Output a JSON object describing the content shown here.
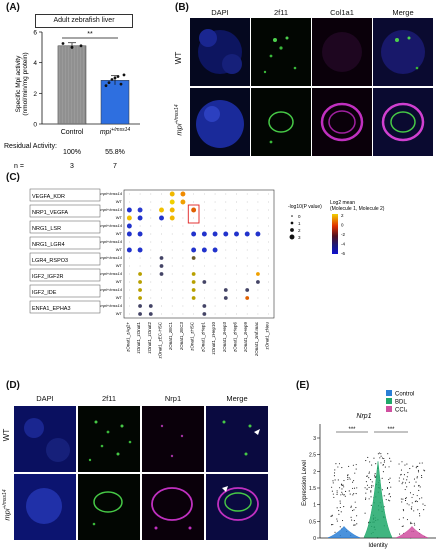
{
  "panel_labels": {
    "a": "(A)",
    "b": "(B)",
    "c": "(C)",
    "d": "(D)",
    "e": "(E)"
  },
  "panel_a": {
    "header": "Adult zebrafish liver",
    "ylabel_line1": "Specific Mpi activity",
    "ylabel_line2": "(nmol/min/mg protein)",
    "yticks": [
      "0",
      "2",
      "4",
      "6"
    ],
    "significance": "**",
    "residual_label": "Residual Activity:",
    "n_label": "n =",
    "chart_data": {
      "type": "bar",
      "categories": [
        "Control",
        "mpi+/mss14"
      ],
      "values": [
        5.1,
        2.85
      ],
      "ylim": [
        0,
        6
      ],
      "errors": [
        0.2,
        0.3
      ],
      "colors": [
        "#9a9a9a",
        "#2e6fe0"
      ],
      "residual_activity": [
        "100%",
        "55.8%"
      ],
      "n": [
        "3",
        "7"
      ]
    }
  },
  "panel_b": {
    "columns": [
      "DAPI",
      "2f11",
      "Col1a1",
      "Merge"
    ],
    "rows": [
      "WT",
      "mpi+/mss14"
    ]
  },
  "panel_c": {
    "rows": [
      "VEGFA_KDR",
      "NRP1_VEGFA",
      "NRG1_LSR",
      "NRG1_LGR4",
      "LGR4_RSPO3",
      "IGF2_IGF2R",
      "IGF2_IDE",
      "ENFA1_EPHA3"
    ],
    "sub_rows": [
      "mpi+/mss14",
      "WT"
    ],
    "columns": [
      "zOnat1_zAg2+",
      "zOnat1_zOnat1",
      "zOnat1_zOnat2",
      "zOnat1_zEC-HSC",
      "zOnat1_zEC1",
      "zOnat1_zEC3",
      "zOnat1_zHSC",
      "zOnat1_zHep1",
      "zOnat1_zHep10",
      "zOnat1_zHep3",
      "zOnat1_zHep6",
      "zOnat1_zHep9",
      "zOnat1_zmf.mac",
      "zOnat1_zNeu"
    ],
    "pvalue_title": "-log10(P value)",
    "pvalue_levels": [
      "0",
      "1",
      "2",
      "3"
    ],
    "mean_title_line1": "Log2 mean",
    "mean_title_line2": "(Molecule 1, Molecule 2)",
    "mean_ticks": [
      "2",
      "0",
      "-2",
      "-4",
      "-6"
    ],
    "chart_data": {
      "type": "dot",
      "points": [
        {
          "row": 0,
          "col": 4,
          "size": 3,
          "color": "#f0b800"
        },
        {
          "row": 0,
          "col": 5,
          "size": 3,
          "color": "#f08a00"
        },
        {
          "row": 1,
          "col": 4,
          "size": 3,
          "color": "#f0d000"
        },
        {
          "row": 1,
          "col": 5,
          "size": 3,
          "color": "#f0a000"
        },
        {
          "row": 2,
          "col": 0,
          "size": 3,
          "color": "#2233cc"
        },
        {
          "row": 2,
          "col": 1,
          "size": 3,
          "color": "#2a3ad0"
        },
        {
          "row": 2,
          "col": 3,
          "size": 3,
          "color": "#f0c000"
        },
        {
          "row": 2,
          "col": 4,
          "size": 3,
          "color": "#f0b800"
        },
        {
          "row": 2,
          "col": 6,
          "size": 3,
          "color": "#e06000"
        },
        {
          "row": 3,
          "col": 0,
          "size": 3,
          "color": "#f0c000"
        },
        {
          "row": 3,
          "col": 1,
          "size": 3,
          "color": "#2233cc"
        },
        {
          "row": 3,
          "col": 3,
          "size": 3,
          "color": "#2233cc"
        },
        {
          "row": 3,
          "col": 4,
          "size": 3,
          "color": "#f0b800"
        },
        {
          "row": 4,
          "col": 0,
          "size": 3,
          "color": "#2233cc"
        },
        {
          "row": 5,
          "col": 0,
          "size": 3,
          "color": "#2233cc"
        },
        {
          "row": 5,
          "col": 1,
          "size": 3,
          "color": "#2233cc"
        },
        {
          "row": 5,
          "col": 6,
          "size": 3,
          "color": "#2233cc"
        },
        {
          "row": 5,
          "col": 7,
          "size": 3,
          "color": "#2233cc"
        },
        {
          "row": 5,
          "col": 8,
          "size": 3,
          "color": "#2233cc"
        },
        {
          "row": 5,
          "col": 9,
          "size": 3,
          "color": "#2233cc"
        },
        {
          "row": 5,
          "col": 10,
          "size": 3,
          "color": "#2233cc"
        },
        {
          "row": 5,
          "col": 11,
          "size": 3,
          "color": "#2233cc"
        },
        {
          "row": 5,
          "col": 12,
          "size": 3,
          "color": "#2233cc"
        },
        {
          "row": 7,
          "col": 0,
          "size": 3,
          "color": "#2233cc"
        },
        {
          "row": 7,
          "col": 1,
          "size": 3,
          "color": "#2233cc"
        },
        {
          "row": 7,
          "col": 6,
          "size": 3,
          "color": "#2233cc"
        },
        {
          "row": 7,
          "col": 7,
          "size": 3,
          "color": "#2233cc"
        },
        {
          "row": 7,
          "col": 8,
          "size": 3,
          "color": "#2233cc"
        },
        {
          "row": 8,
          "col": 3,
          "size": 2,
          "color": "#444466"
        },
        {
          "row": 8,
          "col": 6,
          "size": 2,
          "color": "#6a5a2a"
        },
        {
          "row": 9,
          "col": 3,
          "size": 2,
          "color": "#444466"
        },
        {
          "row": 10,
          "col": 1,
          "size": 2,
          "color": "#b8a000"
        },
        {
          "row": 10,
          "col": 3,
          "size": 2,
          "color": "#444466"
        },
        {
          "row": 10,
          "col": 6,
          "size": 2,
          "color": "#b8a000"
        },
        {
          "row": 10,
          "col": 12,
          "size": 2,
          "color": "#f0a000"
        },
        {
          "row": 11,
          "col": 1,
          "size": 2,
          "color": "#b8a000"
        },
        {
          "row": 11,
          "col": 6,
          "size": 2,
          "color": "#b8a000"
        },
        {
          "row": 11,
          "col": 7,
          "size": 2,
          "color": "#444466"
        },
        {
          "row": 11,
          "col": 12,
          "size": 2,
          "color": "#444466"
        },
        {
          "row": 12,
          "col": 1,
          "size": 2,
          "color": "#b8a000"
        },
        {
          "row": 12,
          "col": 6,
          "size": 2,
          "color": "#b8a000"
        },
        {
          "row": 12,
          "col": 9,
          "size": 2,
          "color": "#444466"
        },
        {
          "row": 12,
          "col": 11,
          "size": 2,
          "color": "#444466"
        },
        {
          "row": 13,
          "col": 1,
          "size": 2,
          "color": "#b8a000"
        },
        {
          "row": 13,
          "col": 6,
          "size": 2,
          "color": "#b8a000"
        },
        {
          "row": 13,
          "col": 9,
          "size": 2,
          "color": "#444466"
        },
        {
          "row": 13,
          "col": 11,
          "size": 2,
          "color": "#e06000"
        },
        {
          "row": 14,
          "col": 1,
          "size": 2,
          "color": "#444466"
        },
        {
          "row": 14,
          "col": 2,
          "size": 2,
          "color": "#444466"
        },
        {
          "row": 14,
          "col": 7,
          "size": 2,
          "color": "#444466"
        },
        {
          "row": 15,
          "col": 1,
          "size": 2,
          "color": "#444466"
        },
        {
          "row": 15,
          "col": 2,
          "size": 2,
          "color": "#444466"
        },
        {
          "row": 15,
          "col": 7,
          "size": 2,
          "color": "#444466"
        }
      ],
      "highlight": {
        "row": 2,
        "col": 6
      }
    }
  },
  "panel_d": {
    "columns": [
      "DAPI",
      "2f11",
      "Nrp1",
      "Merge"
    ],
    "rows": [
      "WT",
      "mpi+/mss14"
    ]
  },
  "panel_e": {
    "title": "Nrp1",
    "ylabel": "Expression Level",
    "xlabel": "Identity",
    "yticks": [
      "0",
      "0.5",
      "1",
      "1.5",
      "2",
      "2.5",
      "3"
    ],
    "significance": [
      "***",
      "***"
    ],
    "chart_data": {
      "type": "violin",
      "series": [
        {
          "name": "Control",
          "color": "#2a7fd6"
        },
        {
          "name": "BDL",
          "color": "#1fa86a"
        },
        {
          "name": "CCl₄",
          "color": "#d04fa0"
        }
      ],
      "ylim": [
        0,
        3
      ]
    }
  }
}
